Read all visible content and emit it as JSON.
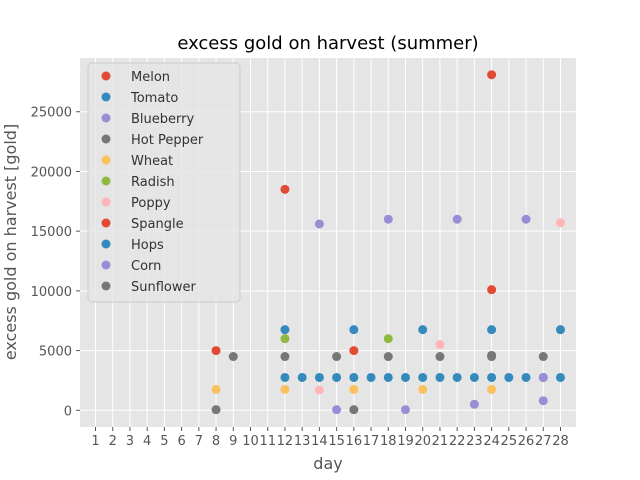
{
  "chart_data": {
    "type": "scatter",
    "title": "excess gold on harvest (summer)",
    "xlabel": "day",
    "ylabel": "excess gold on harvest [gold]",
    "xlim": [
      0.1,
      28.9
    ],
    "ylim": [
      -1400,
      29500
    ],
    "xticks": [
      1,
      2,
      3,
      4,
      5,
      6,
      7,
      8,
      9,
      10,
      11,
      12,
      13,
      14,
      15,
      16,
      17,
      18,
      19,
      20,
      21,
      22,
      23,
      24,
      25,
      26,
      27,
      28
    ],
    "yticks": [
      0,
      5000,
      10000,
      15000,
      20000,
      25000
    ],
    "grid": true,
    "legend_position": "top-left",
    "series": [
      {
        "name": "Melon",
        "color": "#E24A33",
        "points": [
          [
            12,
            18500
          ],
          [
            24,
            28100
          ]
        ]
      },
      {
        "name": "Tomato",
        "color": "#348ABD",
        "points": [
          [
            12,
            2750
          ],
          [
            13,
            2750
          ],
          [
            14,
            2750
          ],
          [
            15,
            2750
          ],
          [
            16,
            2750
          ],
          [
            17,
            2750
          ],
          [
            18,
            2750
          ],
          [
            19,
            2750
          ],
          [
            20,
            2750
          ],
          [
            21,
            2750
          ],
          [
            22,
            2750
          ],
          [
            23,
            2750
          ],
          [
            24,
            2750
          ],
          [
            25,
            2750
          ],
          [
            26,
            2750
          ],
          [
            27,
            2750
          ],
          [
            28,
            2750
          ]
        ]
      },
      {
        "name": "Blueberry",
        "color": "#988ED5",
        "points": [
          [
            14,
            15600
          ],
          [
            18,
            16000
          ],
          [
            22,
            16000
          ],
          [
            26,
            16000
          ]
        ]
      },
      {
        "name": "Hot Pepper",
        "color": "#777777",
        "points": [
          [
            9,
            4500
          ],
          [
            12,
            4500
          ],
          [
            15,
            4500
          ],
          [
            18,
            4500
          ],
          [
            21,
            4500
          ],
          [
            24,
            4500
          ],
          [
            27,
            4500
          ]
        ]
      },
      {
        "name": "Wheat",
        "color": "#FBC15E",
        "points": [
          [
            8,
            1750
          ],
          [
            12,
            1750
          ],
          [
            16,
            1750
          ],
          [
            20,
            1750
          ],
          [
            24,
            1750
          ]
        ]
      },
      {
        "name": "Radish",
        "color": "#8EBA42",
        "points": [
          [
            12,
            6000
          ],
          [
            18,
            6000
          ]
        ]
      },
      {
        "name": "Poppy",
        "color": "#FFB5B8",
        "points": [
          [
            14,
            1700
          ],
          [
            21,
            5500
          ],
          [
            28,
            15700
          ]
        ]
      },
      {
        "name": "Spangle",
        "color": "#E24A33",
        "points": [
          [
            8,
            5000
          ],
          [
            16,
            5000
          ],
          [
            24,
            10100
          ]
        ]
      },
      {
        "name": "Hops",
        "color": "#348ABD",
        "points": [
          [
            12,
            6750
          ],
          [
            16,
            6750
          ],
          [
            20,
            6750
          ],
          [
            24,
            6750
          ],
          [
            28,
            6750
          ]
        ]
      },
      {
        "name": "Corn",
        "color": "#988ED5",
        "points": [
          [
            15,
            50
          ],
          [
            19,
            50
          ],
          [
            23,
            500
          ],
          [
            27,
            800
          ],
          [
            27,
            2750
          ]
        ]
      },
      {
        "name": "Sunflower",
        "color": "#777777",
        "points": [
          [
            8,
            50
          ],
          [
            16,
            50
          ],
          [
            24,
            4600
          ]
        ]
      }
    ]
  }
}
